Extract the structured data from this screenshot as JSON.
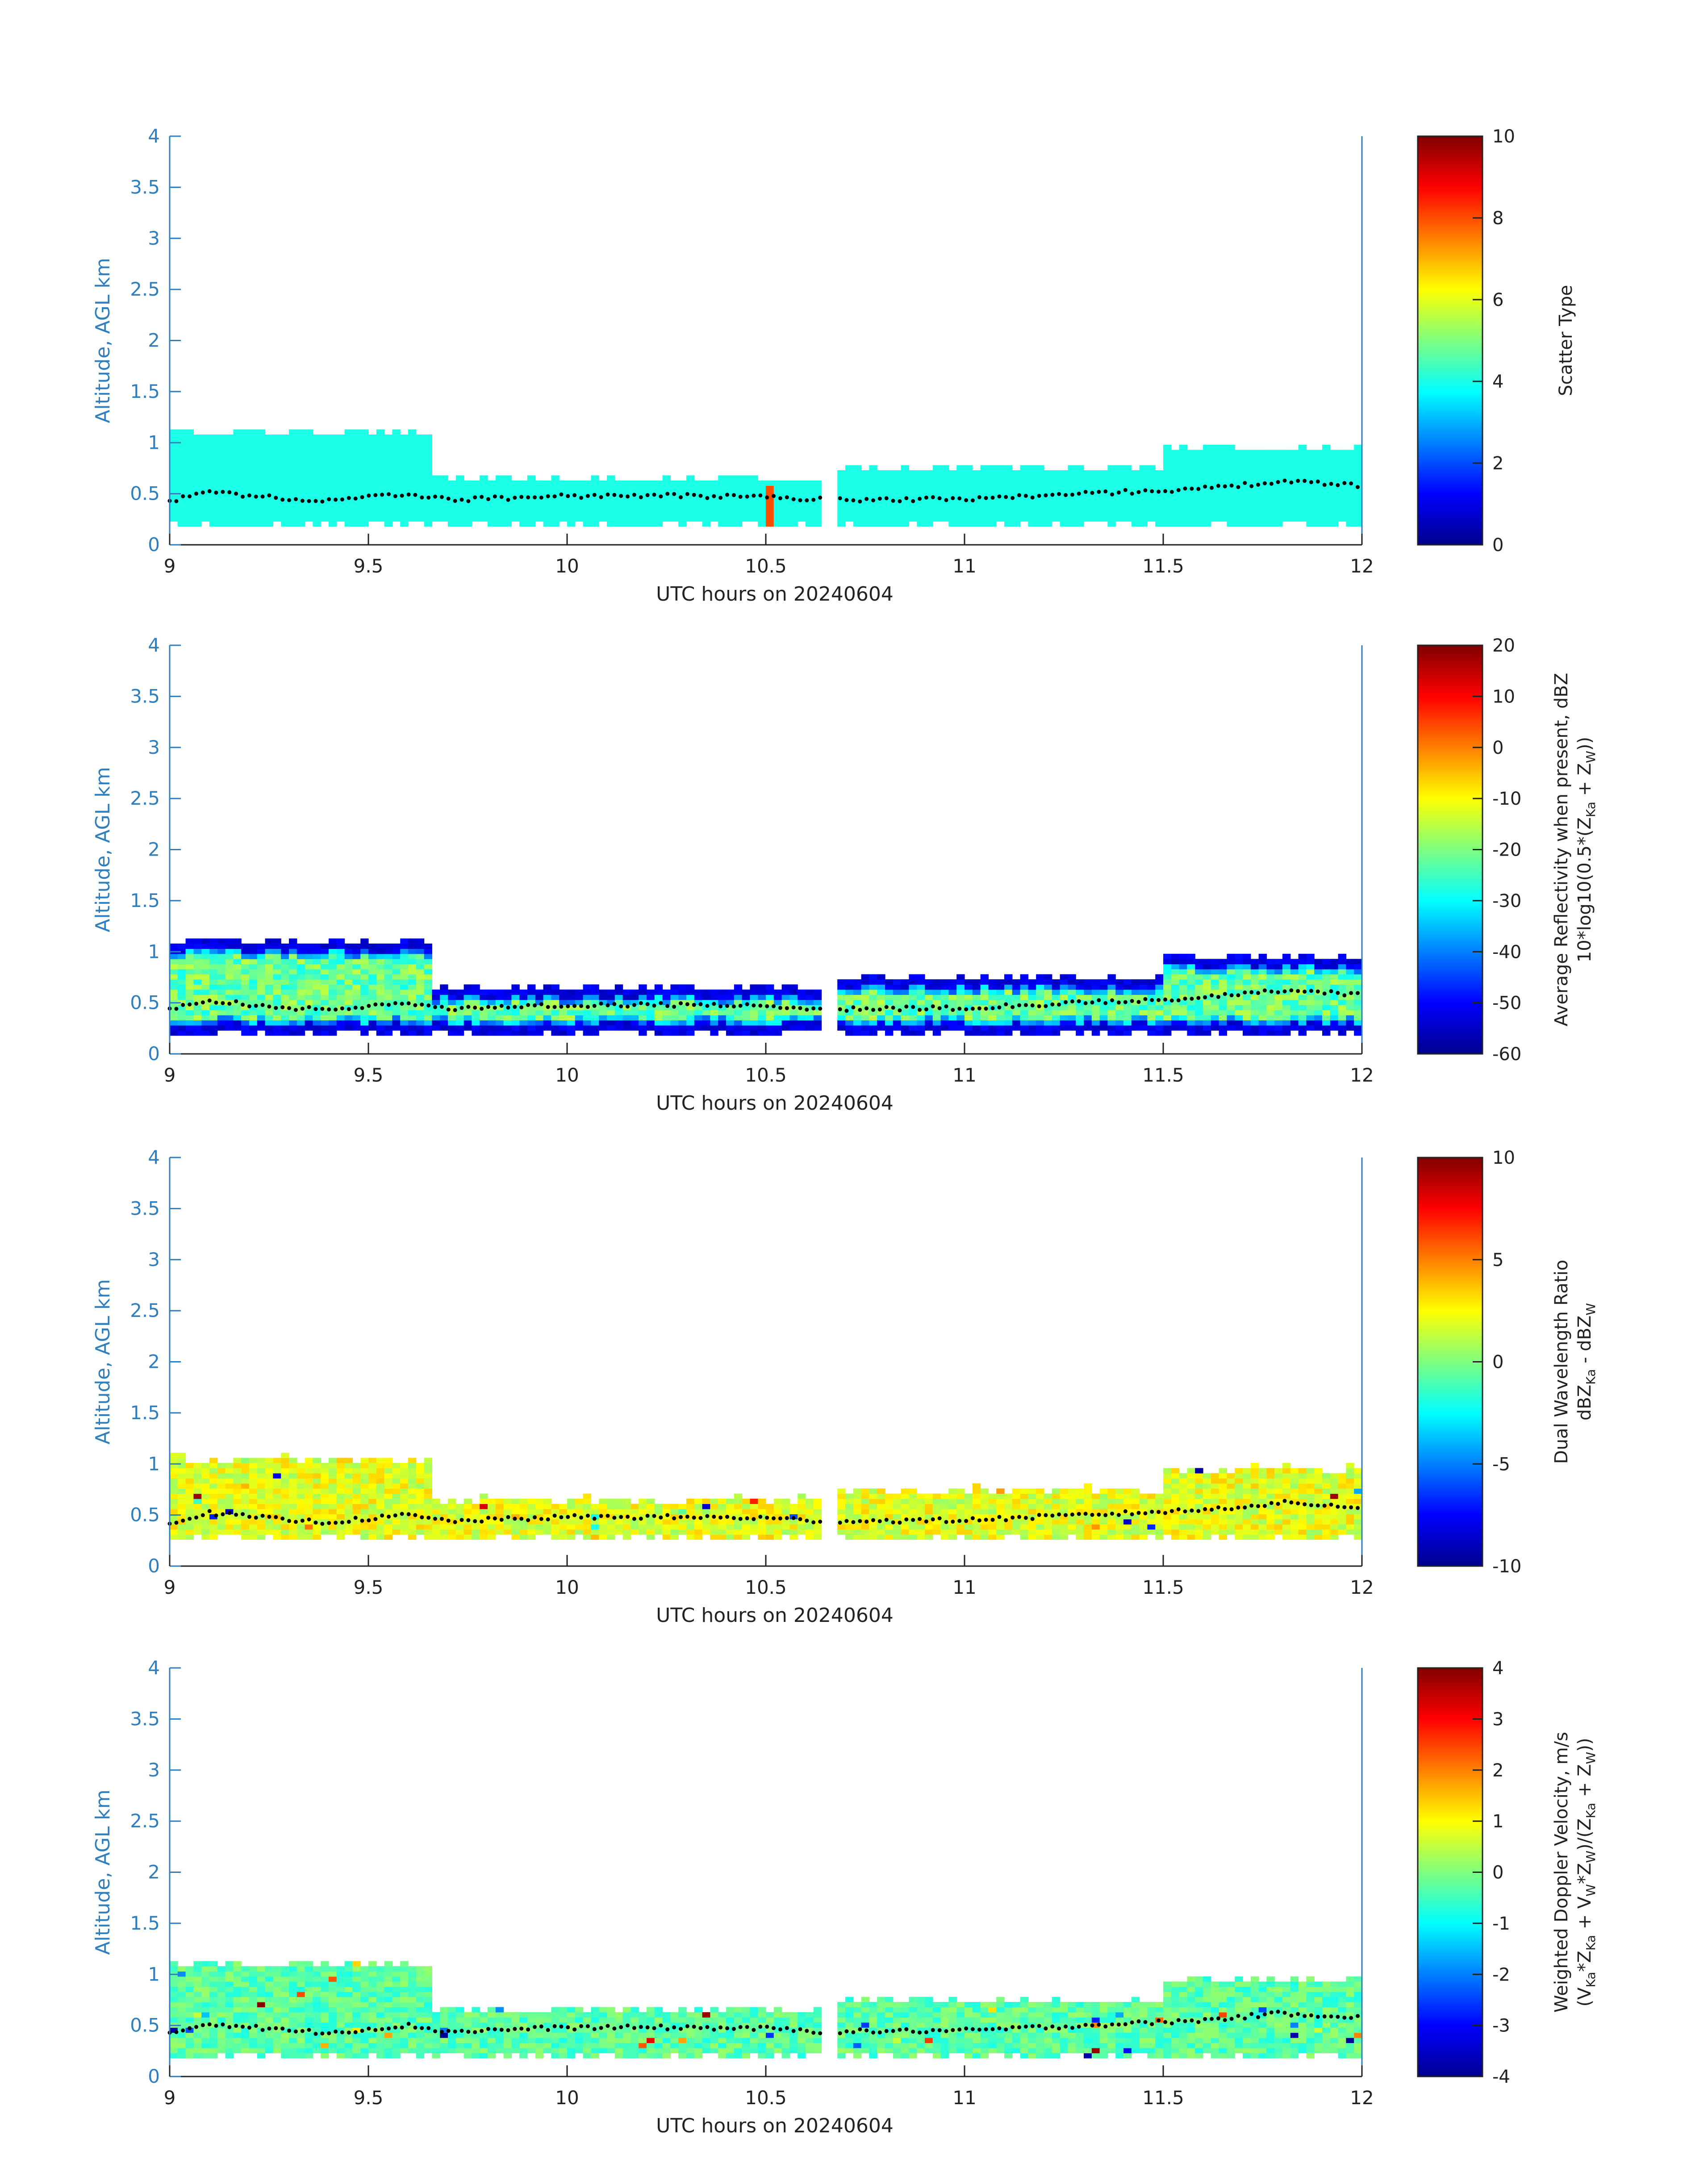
{
  "chart_data": [
    {
      "type": "heatmap",
      "title": "",
      "xlabel": "UTC hours on 20240604",
      "ylabel": "Altitude, AGL km",
      "xlim": [
        9,
        12
      ],
      "ylim": [
        0,
        4
      ],
      "xticks": [
        "9",
        "9.5",
        "10",
        "10.5",
        "11",
        "11.5",
        "12"
      ],
      "yticks": [
        "0",
        "0.5",
        "1",
        "1.5",
        "2",
        "2.5",
        "3",
        "3.5",
        "4"
      ],
      "colorbar": {
        "label_lines": [
          "Scatter Type"
        ],
        "range": [
          0,
          10
        ],
        "ticks": [
          "0",
          "2",
          "4",
          "6",
          "8",
          "10"
        ]
      },
      "layer": {
        "base_km_min": 0.18,
        "top_km_segments": [
          {
            "x": [
              9.0,
              9.65
            ],
            "top": 1.1
          },
          {
            "x": [
              9.65,
              10.65
            ],
            "top": 0.65
          },
          {
            "x": [
              10.68,
              11.5
            ],
            "top": 0.75
          },
          {
            "x": [
              11.5,
              12.0
            ],
            "top": 0.95
          }
        ],
        "dominant_value": 4,
        "notes": "red column near 10.5 UTC, value ~8"
      },
      "dotted_line_km": [
        {
          "x": 9.0,
          "y": 0.43
        },
        {
          "x": 9.1,
          "y": 0.52
        },
        {
          "x": 9.3,
          "y": 0.45
        },
        {
          "x": 9.4,
          "y": 0.43
        },
        {
          "x": 9.6,
          "y": 0.5
        },
        {
          "x": 9.7,
          "y": 0.44
        },
        {
          "x": 10.0,
          "y": 0.48
        },
        {
          "x": 10.3,
          "y": 0.48
        },
        {
          "x": 10.5,
          "y": 0.47
        },
        {
          "x": 10.65,
          "y": 0.44
        },
        {
          "x": 11.0,
          "y": 0.45
        },
        {
          "x": 11.3,
          "y": 0.5
        },
        {
          "x": 11.6,
          "y": 0.55
        },
        {
          "x": 11.8,
          "y": 0.62
        },
        {
          "x": 12.0,
          "y": 0.58
        }
      ]
    },
    {
      "type": "heatmap",
      "title": "",
      "xlabel": "UTC hours on 20240604",
      "ylabel": "Altitude, AGL km",
      "xlim": [
        9,
        12
      ],
      "ylim": [
        0,
        4
      ],
      "xticks": [
        "9",
        "9.5",
        "10",
        "10.5",
        "11",
        "11.5",
        "12"
      ],
      "yticks": [
        "0",
        "0.5",
        "1",
        "1.5",
        "2",
        "2.5",
        "3",
        "3.5",
        "4"
      ],
      "colorbar": {
        "label_lines": [
          "Average Reflectivity when present, dBZ",
          "10*log10(0.5*(Z",
          "Ka",
          " + Z",
          "W",
          "))"
        ],
        "range": [
          -60,
          20
        ],
        "ticks": [
          "-60",
          "-50",
          "-40",
          "-30",
          "-20",
          "-10",
          "0",
          "10",
          "20"
        ]
      },
      "layer": {
        "edge_value": -55,
        "core_value": -22,
        "top_km_segments": [
          {
            "x": [
              9.0,
              9.65
            ],
            "top": 1.1
          },
          {
            "x": [
              9.65,
              10.65
            ],
            "top": 0.65
          },
          {
            "x": [
              10.68,
              11.5
            ],
            "top": 0.75
          },
          {
            "x": [
              11.5,
              12.0
            ],
            "top": 0.95
          }
        ]
      }
    },
    {
      "type": "heatmap",
      "title": "",
      "xlabel": "UTC hours on 20240604",
      "ylabel": "Altitude, AGL km",
      "xlim": [
        9,
        12
      ],
      "ylim": [
        0,
        4
      ],
      "xticks": [
        "9",
        "9.5",
        "10",
        "10.5",
        "11",
        "11.5",
        "12"
      ],
      "yticks": [
        "0",
        "0.5",
        "1",
        "1.5",
        "2",
        "2.5",
        "3",
        "3.5",
        "4"
      ],
      "colorbar": {
        "label_lines": [
          "Dual Wavelength Ratio",
          "dBZ",
          "Ka",
          " - dBZ",
          "W"
        ],
        "range": [
          -10,
          10
        ],
        "ticks": [
          "-10",
          "-5",
          "0",
          "5",
          "10"
        ]
      },
      "layer": {
        "dominant_value": 2,
        "spread": 1.5,
        "top_km_segments": [
          {
            "x": [
              9.0,
              9.65
            ],
            "top": 1.05
          },
          {
            "x": [
              9.65,
              10.65
            ],
            "top": 0.65
          },
          {
            "x": [
              10.68,
              11.5
            ],
            "top": 0.75
          },
          {
            "x": [
              11.5,
              12.0
            ],
            "top": 0.95
          }
        ]
      }
    },
    {
      "type": "heatmap",
      "title": "",
      "xlabel": "UTC hours on 20240604",
      "ylabel": "Altitude, AGL km",
      "xlim": [
        9,
        12
      ],
      "ylim": [
        0,
        4
      ],
      "xticks": [
        "9",
        "9.5",
        "10",
        "10.5",
        "11",
        "11.5",
        "12"
      ],
      "yticks": [
        "0",
        "0.5",
        "1",
        "1.5",
        "2",
        "2.5",
        "3",
        "3.5",
        "4"
      ],
      "colorbar": {
        "label_lines": [
          "Weighted Doppler Velocity, m/s",
          "(V",
          "Ka",
          "*Z",
          "Ka",
          " + V",
          "W",
          "*Z",
          "W",
          ")/(Z",
          "Ka",
          " + Z",
          "W",
          "))"
        ],
        "range": [
          -4,
          4
        ],
        "ticks": [
          "-4",
          "-3",
          "-2",
          "-1",
          "0",
          "1",
          "2",
          "3",
          "4"
        ]
      },
      "layer": {
        "dominant_value": -0.3,
        "spread": 0.5,
        "top_km_segments": [
          {
            "x": [
              9.0,
              9.65
            ],
            "top": 1.1
          },
          {
            "x": [
              9.65,
              10.65
            ],
            "top": 0.65
          },
          {
            "x": [
              10.68,
              11.5
            ],
            "top": 0.75
          },
          {
            "x": [
              11.5,
              12.0
            ],
            "top": 0.95
          }
        ]
      }
    }
  ],
  "colors": {
    "axis": "#2f7fbf",
    "tick_text": "#222222",
    "ylabel": "#2f7fbf",
    "dots": "#000000"
  }
}
